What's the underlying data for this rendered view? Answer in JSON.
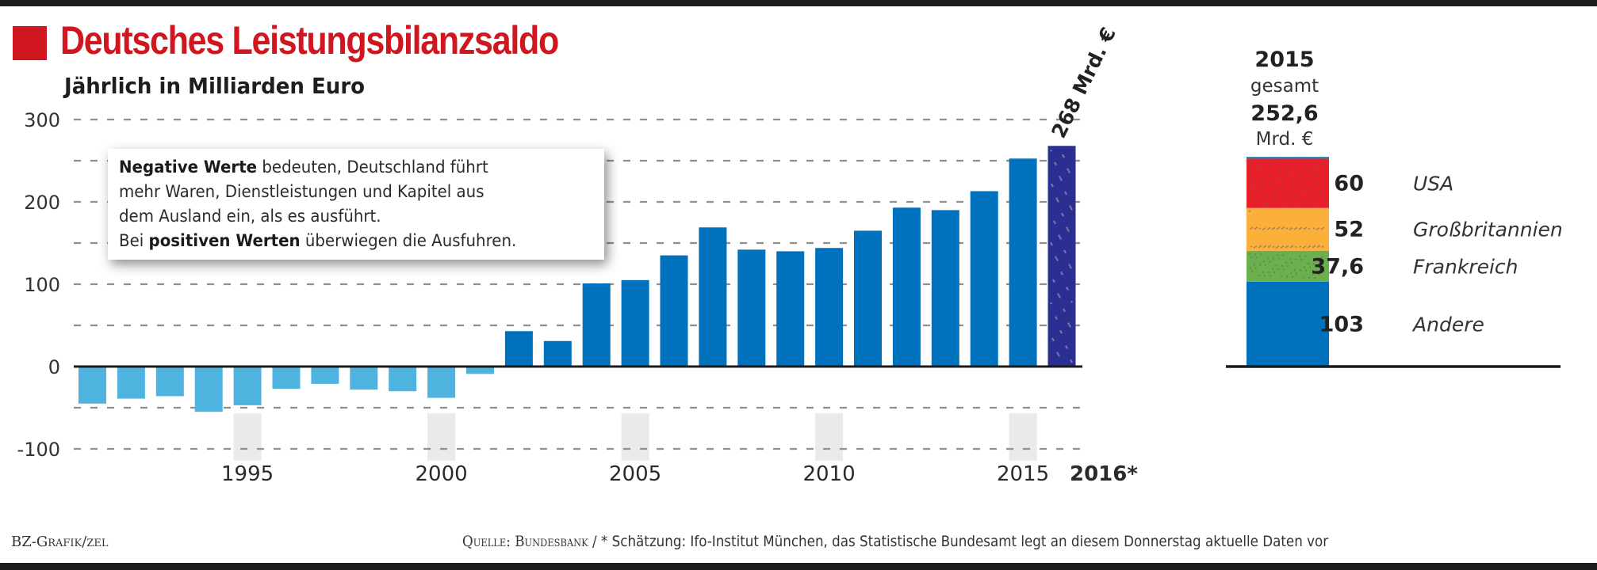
{
  "header": {
    "title": "Deutsches Leistungsbilanzsaldo",
    "subtitle": "Jährlich in Milliarden Euro",
    "accent_color": "#d0161e"
  },
  "note": {
    "line1_bold": "Negative Werte",
    "line1_rest": " bedeuten, Deutschland führt",
    "line2": "mehr Waren, Dienstleistungen und Kapitel aus",
    "line3": "dem Ausland ein, als es ausführt.",
    "line4_start": "Bei ",
    "line4_bold": "positiven Werten",
    "line4_rest": " überwiegen die Ausfuhren."
  },
  "chart_data": [
    {
      "type": "bar",
      "title": "Deutsches Leistungsbilanzsaldo",
      "subtitle": "Jährlich in Milliarden Euro",
      "xlabel": "",
      "ylabel": "Milliarden Euro",
      "ylim": [
        -100,
        300
      ],
      "yticks": [
        300,
        200,
        100,
        0,
        -100
      ],
      "ytick_labels": [
        "300",
        "200",
        "100",
        "0",
        "-100"
      ],
      "gridlines_every": 50,
      "grid": true,
      "categories": [
        "1991",
        "1992",
        "1993",
        "1994",
        "1995",
        "1996",
        "1997",
        "1998",
        "1999",
        "2000",
        "2001",
        "2002",
        "2003",
        "2004",
        "2005",
        "2006",
        "2007",
        "2008",
        "2009",
        "2010",
        "2011",
        "2012",
        "2013",
        "2014",
        "2015",
        "2016"
      ],
      "values": [
        -45,
        -39,
        -36,
        -55,
        -47,
        -27,
        -21,
        -28,
        -30,
        -38,
        -9,
        43,
        31,
        101,
        105,
        135,
        169,
        142,
        140,
        144,
        165,
        193,
        190,
        213,
        252.6,
        268
      ],
      "xtick_labels": [
        {
          "year": "1995",
          "label": "1995"
        },
        {
          "year": "2000",
          "label": "2000"
        },
        {
          "year": "2005",
          "label": "2005"
        },
        {
          "year": "2010",
          "label": "2010"
        },
        {
          "year": "2015",
          "label": "2015"
        },
        {
          "year": "2016",
          "label": "2016*",
          "bold": true
        }
      ],
      "estimate_category": "2016",
      "annotations": [
        {
          "category": "2016",
          "text": "268 Mrd. €"
        }
      ],
      "colors": {
        "negative": "#4fb3df",
        "positive": "#0071bc",
        "estimate": "#2b2f92"
      }
    },
    {
      "type": "bar",
      "stacked": true,
      "title": "2015 gesamt 252,6 Mrd. €",
      "categories": [
        "2015"
      ],
      "total": 252.6,
      "series": [
        {
          "name": "Andere",
          "value": 103,
          "label": "103",
          "color": "#0071bc"
        },
        {
          "name": "Frankreich",
          "value": 37.6,
          "label": "37,6",
          "color": "#6ab04c"
        },
        {
          "name": "Großbritannien",
          "value": 52,
          "label": "52",
          "color": "#fbb03b"
        },
        {
          "name": "USA",
          "value": 60,
          "label": "60",
          "color": "#e8202a"
        }
      ]
    }
  ],
  "panel": {
    "year": "2015",
    "gesamt": "gesamt",
    "total": "252,6",
    "unit": "Mrd. €"
  },
  "footer": {
    "credit": "BZ-Grafik/zel",
    "source": "Quelle: Bundesbank",
    "source_note": " / * Schätzung: Ifo-Institut München, das Statistische Bundesamt legt an diesem Donnerstag aktuelle Daten vor"
  }
}
